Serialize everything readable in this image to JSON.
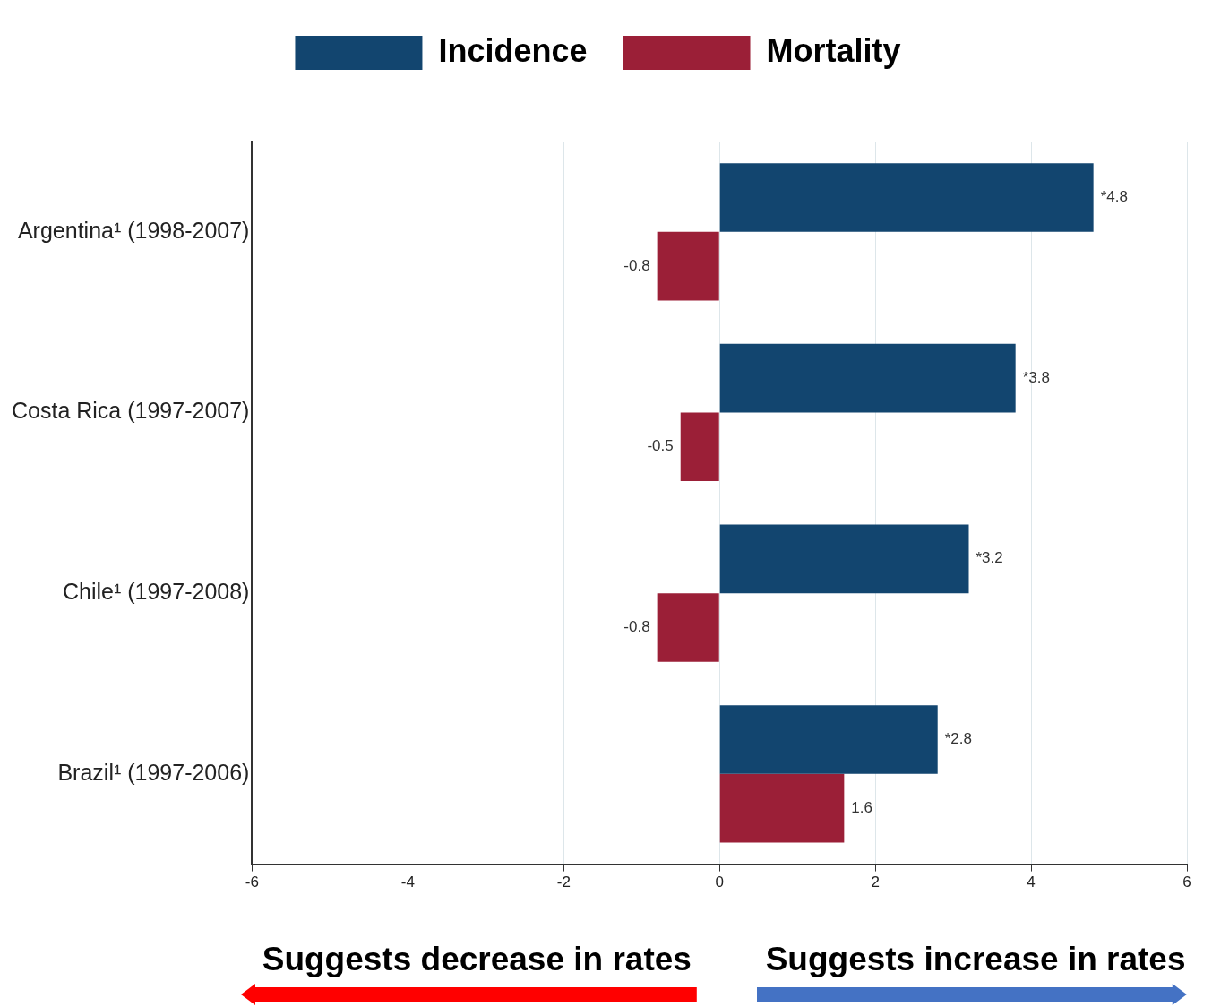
{
  "chart_data": {
    "type": "bar",
    "orientation": "horizontal",
    "categories": [
      "Argentina¹ (1998-2007)",
      "Costa Rica (1997-2007)",
      "Chile¹ (1997-2008)",
      "Brazil¹ (1997-2006)"
    ],
    "series": [
      {
        "name": "Incidence",
        "color": "#12456f",
        "values": [
          4.8,
          3.8,
          3.2,
          2.8
        ],
        "value_labels": [
          "*4.8",
          "*3.8",
          "*3.2",
          "*2.8"
        ]
      },
      {
        "name": "Mortality",
        "color": "#9b1f37",
        "values": [
          -0.8,
          -0.5,
          -0.8,
          1.6
        ],
        "value_labels": [
          "-0.8",
          "-0.5",
          "-0.8",
          "1.6"
        ]
      }
    ],
    "xlim": [
      -6,
      6
    ],
    "xticks": [
      -6,
      -4,
      -2,
      0,
      2,
      4,
      6
    ],
    "grid": "x",
    "legend": "top",
    "annotations": [
      "Suggests decrease in rates",
      "Suggests increase in rates"
    ]
  }
}
